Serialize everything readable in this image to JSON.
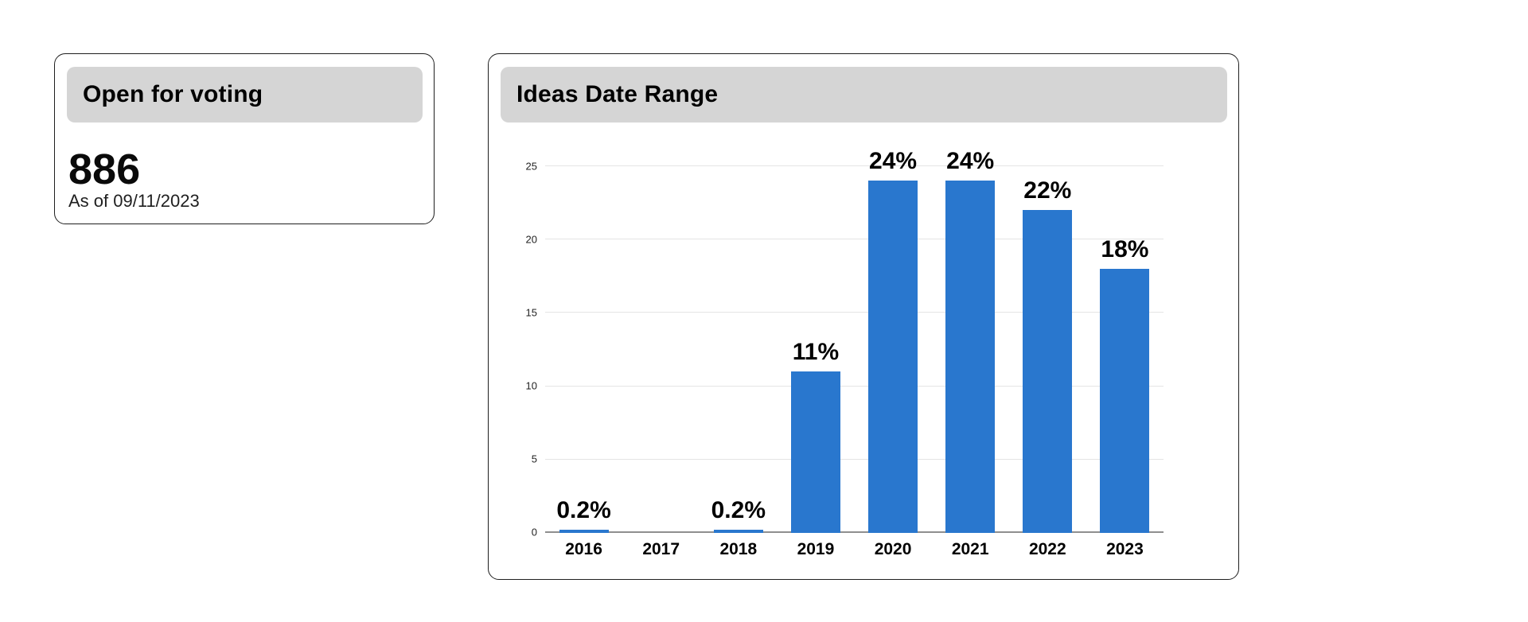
{
  "cards": {
    "open_for_voting": {
      "title": "Open for voting",
      "count": "886",
      "as_of": "As of 09/11/2023"
    },
    "ideas_date_range": {
      "title": "Ideas Date Range"
    }
  },
  "colors": {
    "bar": "#2977CE",
    "header_bg": "#D5D5D5",
    "card_border": "#1F1F1F",
    "gridline": "#E4E4E4",
    "axis_line": "#8F8F8F"
  },
  "chart_data": {
    "type": "bar",
    "title": "Ideas Date Range",
    "categories": [
      "2016",
      "2017",
      "2018",
      "2019",
      "2020",
      "2021",
      "2022",
      "2023"
    ],
    "values": [
      0.2,
      0,
      0.2,
      11,
      24,
      24,
      22,
      18
    ],
    "bar_labels": [
      "0.2%",
      "",
      "0.2%",
      "11%",
      "24%",
      "24%",
      "22%",
      "18%"
    ],
    "unit": "percent",
    "yticks": [
      0,
      5,
      10,
      15,
      20,
      25
    ],
    "ylim": [
      0,
      25
    ],
    "grid": true,
    "legend": "none",
    "xlabel": "",
    "ylabel": ""
  }
}
